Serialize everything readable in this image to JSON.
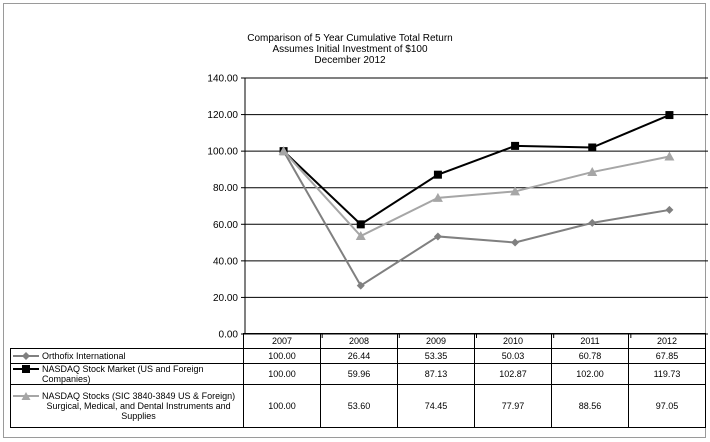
{
  "chart_data": {
    "type": "line",
    "title": "Comparison of 5 Year Cumulative  Total Return",
    "subtitle_lines": [
      "Assumes Initial Investment of $100",
      "December 2012"
    ],
    "categories": [
      "2007",
      "2008",
      "2009",
      "2010",
      "2011",
      "2012"
    ],
    "ylim": [
      0,
      140
    ],
    "yticks": [
      "0.00",
      "20.00",
      "40.00",
      "60.00",
      "80.00",
      "100.00",
      "120.00",
      "140.00"
    ],
    "ytick_values": [
      0,
      20,
      40,
      60,
      80,
      100,
      120,
      140
    ],
    "grid": true,
    "legend": "table-below",
    "series": [
      {
        "name": "Orthofix International",
        "marker": "diamond",
        "color": "#808080",
        "values": [
          100.0,
          26.44,
          53.35,
          50.03,
          60.78,
          67.85
        ],
        "labels": [
          "100.00",
          "26.44",
          "53.35",
          "50.03",
          "60.78",
          "67.85"
        ]
      },
      {
        "name": "NASDAQ Stock Market (US and Foreign Companies)",
        "marker": "square",
        "color": "#000000",
        "values": [
          100.0,
          59.96,
          87.13,
          102.87,
          102.0,
          119.73
        ],
        "labels": [
          "100.00",
          "59.96",
          "87.13",
          "102.87",
          "102.00",
          "119.73"
        ]
      },
      {
        "name_lines": [
          "NASDAQ Stocks (SIC 3840-3849  US & Foreign)",
          "Surgical, Medical, and Dental Instruments and",
          "Supplies"
        ],
        "marker": "triangle",
        "color": "#a6a6a6",
        "values": [
          100.0,
          53.6,
          74.45,
          77.97,
          88.56,
          97.05
        ],
        "labels": [
          "100.00",
          "53.60",
          "74.45",
          "77.97",
          "88.56",
          "97.05"
        ]
      }
    ]
  }
}
